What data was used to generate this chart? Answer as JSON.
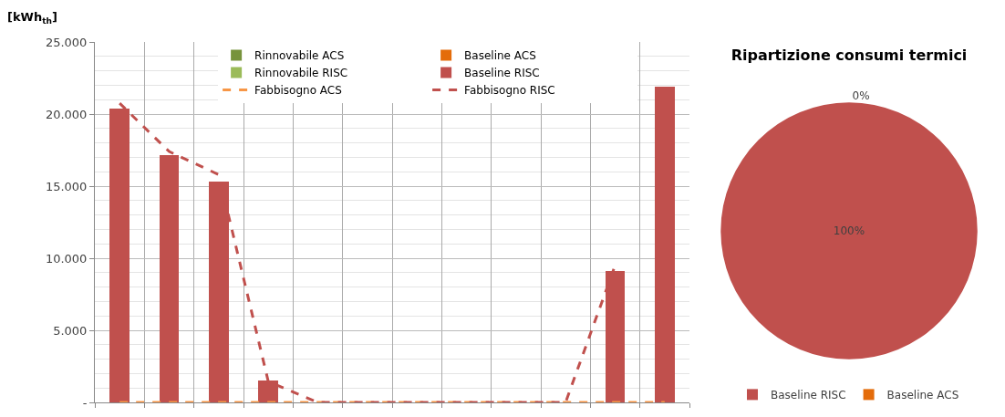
{
  "chart_data": [
    {
      "type": "bar",
      "ylabel": "[kWh$_{th}$]",
      "stacked": true,
      "categories": [
        null,
        null,
        null,
        null,
        null,
        null,
        null,
        null,
        null,
        null,
        null,
        null
      ],
      "series": [
        {
          "name": "Rinnovabile ACS",
          "color": "#77933c",
          "values": [
            0,
            0,
            0,
            0,
            0,
            0,
            0,
            0,
            0,
            0,
            0,
            0
          ]
        },
        {
          "name": "Rinnovabile RISC",
          "color": "#9bbb59",
          "values": [
            0,
            0,
            0,
            0,
            0,
            0,
            0,
            0,
            0,
            0,
            0,
            0
          ]
        },
        {
          "name": "Baseline ACS",
          "color": "#e46c0a",
          "values": [
            0,
            0,
            0,
            0,
            0,
            0,
            0,
            0,
            0,
            0,
            0,
            0
          ]
        },
        {
          "name": "Baseline RISC",
          "color": "#c0504d",
          "values": [
            20400,
            17150,
            15300,
            1500,
            0,
            0,
            0,
            0,
            0,
            0,
            9100,
            21900
          ]
        },
        {
          "name": "Fabbisogno ACS",
          "type": "line",
          "line_style": "dashed",
          "color": "#f79646",
          "values": [
            0,
            0,
            0,
            0,
            0,
            0,
            0,
            0,
            0,
            0,
            0,
            0
          ]
        },
        {
          "name": "Fabbisogno RISC",
          "type": "line",
          "line_style": "dashed",
          "color": "#c0504d",
          "values": [
            20750,
            17400,
            15800,
            1450,
            0,
            0,
            0,
            0,
            0,
            0,
            9500,
            null
          ]
        }
      ],
      "ylim": [
        0,
        25000
      ],
      "yticks": [
        {
          "value": 0,
          "label": "-"
        },
        {
          "value": 5000,
          "label": "5.000"
        },
        {
          "value": 10000,
          "label": "10.000"
        },
        {
          "value": 15000,
          "label": "15.000"
        },
        {
          "value": 20000,
          "label": "20.000"
        },
        {
          "value": 25000,
          "label": "25.000"
        }
      ],
      "grid": true,
      "legend": "top",
      "tick_labels": "y",
      "marker": "none"
    },
    {
      "type": "pie",
      "title": "Ripartizione consumi termici",
      "categories": [
        "Baseline RISC",
        "Baseline ACS"
      ],
      "values": [
        100,
        0
      ],
      "colors": [
        "#c0504d",
        "#e46c0a"
      ],
      "value_labels": [
        "100%",
        "0%"
      ],
      "legend": "bottom"
    }
  ]
}
